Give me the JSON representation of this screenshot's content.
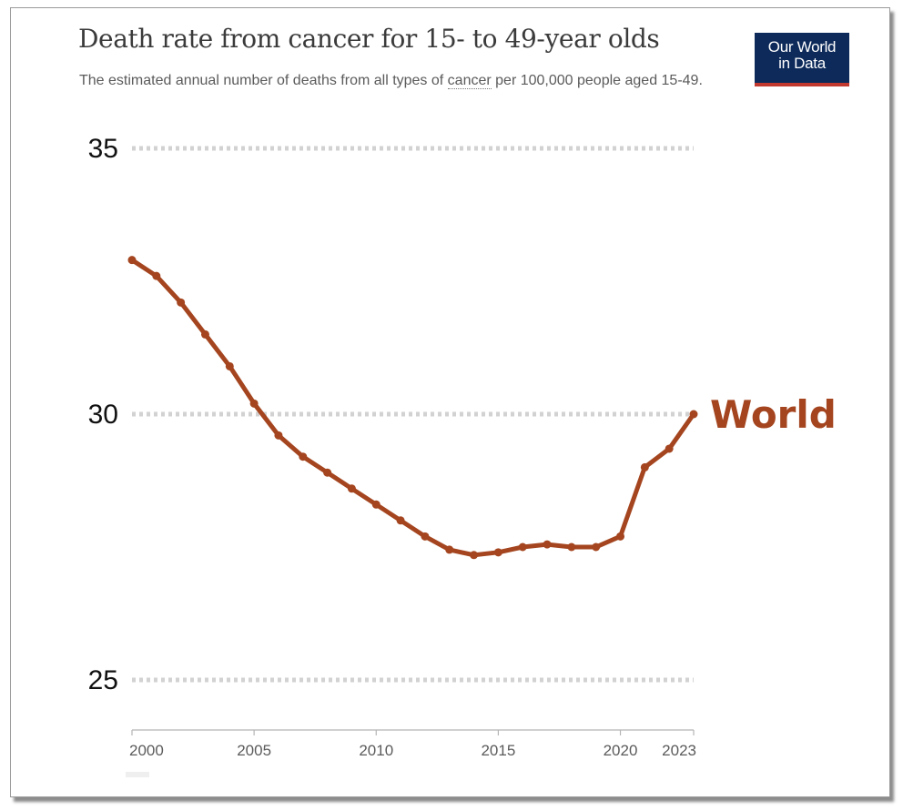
{
  "logo": {
    "line1": "Our World",
    "line2": "in Data"
  },
  "chart_data": {
    "type": "line",
    "title": "Death rate from cancer for 15- to 49-year olds",
    "subtitle_before": "The estimated annual number of deaths from all types of ",
    "subtitle_term": "cancer",
    "subtitle_after": " per 100,000 people aged 15-49.",
    "xlabel": "",
    "ylabel": "",
    "xlim": [
      2000,
      2023
    ],
    "ylim": [
      25,
      35
    ],
    "yticks": [
      25,
      30,
      35
    ],
    "xticks": [
      2000,
      2005,
      2010,
      2015,
      2020,
      2023
    ],
    "grid": true,
    "series": [
      {
        "name": "World",
        "color": "#a4451f",
        "x": [
          2000,
          2001,
          2002,
          2003,
          2004,
          2005,
          2006,
          2007,
          2008,
          2009,
          2010,
          2011,
          2012,
          2013,
          2014,
          2015,
          2016,
          2017,
          2018,
          2019,
          2020,
          2021,
          2022,
          2023
        ],
        "values": [
          32.9,
          32.6,
          32.1,
          31.5,
          30.9,
          30.2,
          29.6,
          29.2,
          28.9,
          28.6,
          28.3,
          28.0,
          27.7,
          27.45,
          27.35,
          27.4,
          27.5,
          27.55,
          27.5,
          27.5,
          27.7,
          29.0,
          29.35,
          30.0
        ]
      }
    ]
  }
}
